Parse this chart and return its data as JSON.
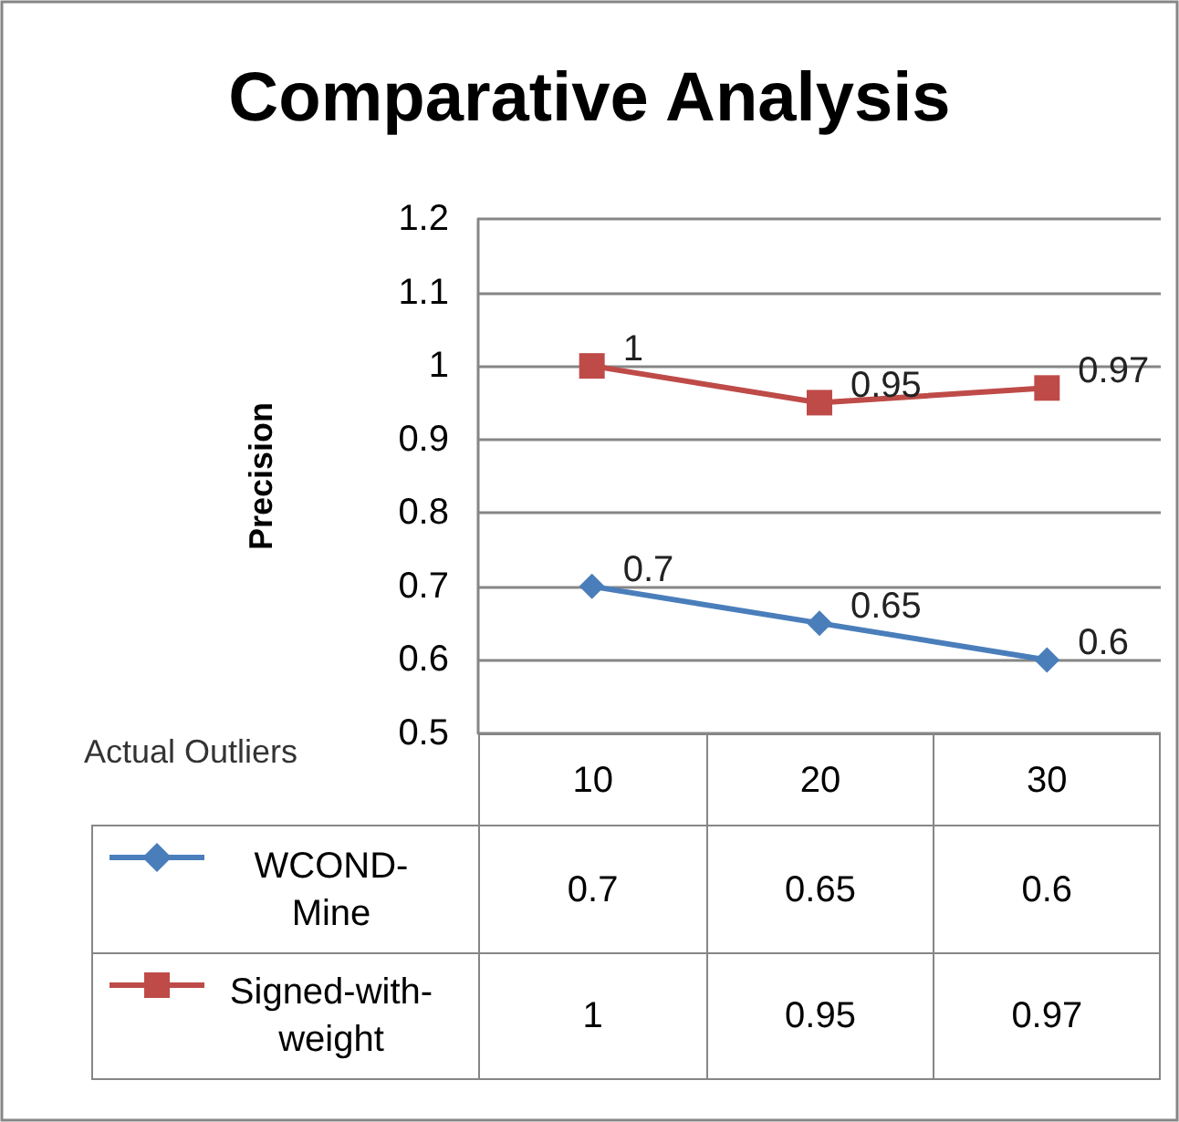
{
  "chart_data": {
    "type": "line",
    "title": "Comparative Analysis",
    "ylabel": "Precision",
    "xlabel": "Actual Outliers",
    "categories": [
      "10",
      "20",
      "30"
    ],
    "series": [
      {
        "name": "WCOND-Mine",
        "color": "#4a7ebb",
        "marker": "diamond",
        "values": [
          0.7,
          0.65,
          0.6
        ],
        "value_labels": [
          "0.7",
          "0.65",
          "0.6"
        ]
      },
      {
        "name": "Signed-with-weight",
        "color": "#be4b48",
        "marker": "square",
        "values": [
          1,
          0.95,
          0.97
        ],
        "value_labels": [
          "1",
          "0.95",
          "0.97"
        ]
      }
    ],
    "annotations": [
      "0.7",
      "0.65",
      "0.6",
      "1",
      "0.95",
      "0.97"
    ],
    "ylim": [
      0.5,
      1.2
    ],
    "yticks": [
      0.5,
      0.6,
      0.7,
      0.8,
      0.9,
      1,
      1.1,
      1.2
    ],
    "grid": "y",
    "legend": "bottom"
  }
}
